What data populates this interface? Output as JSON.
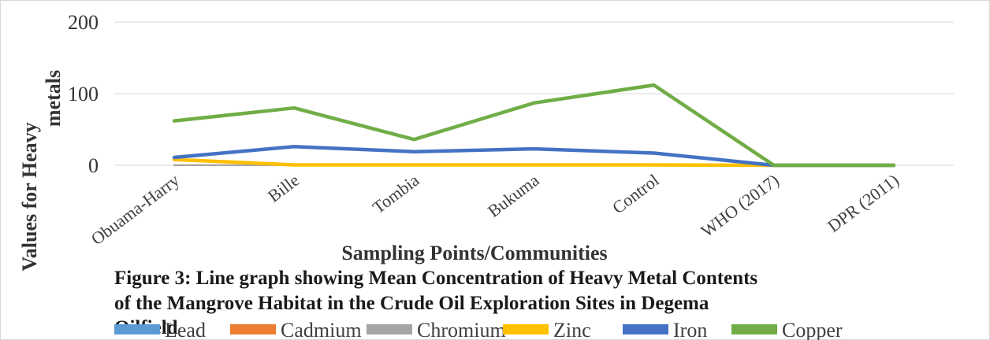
{
  "chart_data": {
    "type": "line",
    "categories": [
      "Obuama-Harry",
      "Bille",
      "Tombia",
      "Bukuma",
      "Control",
      "WHO (2017)",
      "DPR (2011)"
    ],
    "series": [
      {
        "name": "Lead",
        "color": "#5b9bd5",
        "values": [
          0,
          0,
          0,
          0,
          0,
          0,
          0
        ]
      },
      {
        "name": "Cadmium",
        "color": "#ed7d31",
        "values": [
          0.3,
          0,
          0,
          0,
          0,
          0,
          0
        ]
      },
      {
        "name": "Chromium",
        "color": "#a5a5a5",
        "values": [
          0,
          0,
          0,
          0,
          0,
          0,
          0
        ]
      },
      {
        "name": "Zinc",
        "color": "#ffc000",
        "values": [
          8,
          0.5,
          0.5,
          0.5,
          0.5,
          0,
          0
        ]
      },
      {
        "name": "Iron",
        "color": "#4472c4",
        "values": [
          11,
          26,
          19,
          23,
          17,
          0,
          0
        ]
      },
      {
        "name": "Copper",
        "color": "#70ad47",
        "values": [
          62,
          80,
          36,
          87,
          112,
          0,
          0
        ]
      }
    ],
    "xlabel": "Sampling Points/Communities",
    "ylabel_line1": "Values for Heavy",
    "ylabel_line2": "metals",
    "yticks": [
      "0",
      "100",
      "200"
    ],
    "ylim": [
      0,
      200
    ],
    "grid": true,
    "legend": "bottom",
    "caption": [
      "Figure 3: Line graph showing Mean Concentration of Heavy Metal Contents",
      "of the Mangrove Habitat in the Crude Oil Exploration Sites in Degema",
      "Oilfield"
    ]
  }
}
